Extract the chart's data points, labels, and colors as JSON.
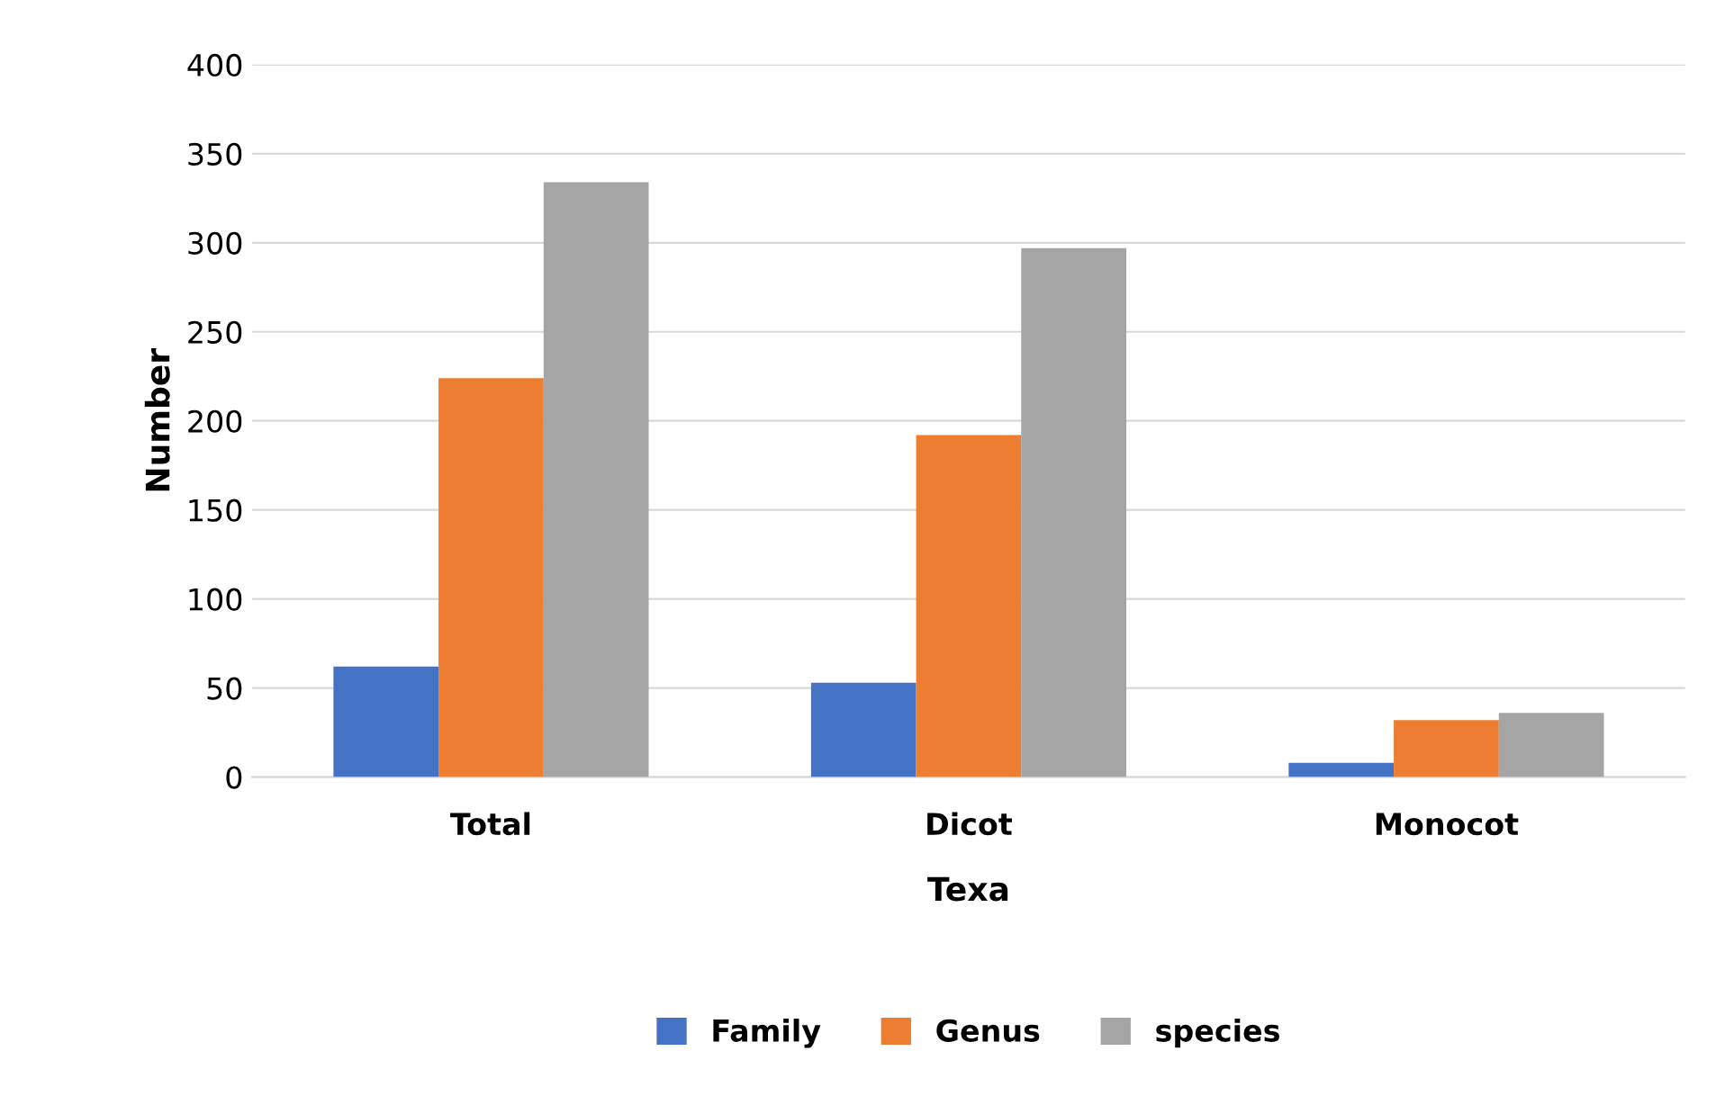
{
  "chart_data": {
    "type": "bar",
    "xlabel": "Texa",
    "ylabel": "Number",
    "categories": [
      "Total",
      "Dicot",
      "Monocot"
    ],
    "series": [
      {
        "name": "Family",
        "color": "#4472c4",
        "values": [
          62,
          53,
          8
        ]
      },
      {
        "name": "Genus",
        "color": "#ed7d31",
        "values": [
          224,
          192,
          32
        ]
      },
      {
        "name": "species",
        "color": "#a5a5a5",
        "values": [
          334,
          297,
          36
        ]
      }
    ],
    "ylim": [
      0,
      400
    ],
    "yticks": [
      0,
      50,
      100,
      150,
      200,
      250,
      300,
      350,
      400
    ],
    "grid": "y",
    "legend": "bottom"
  }
}
